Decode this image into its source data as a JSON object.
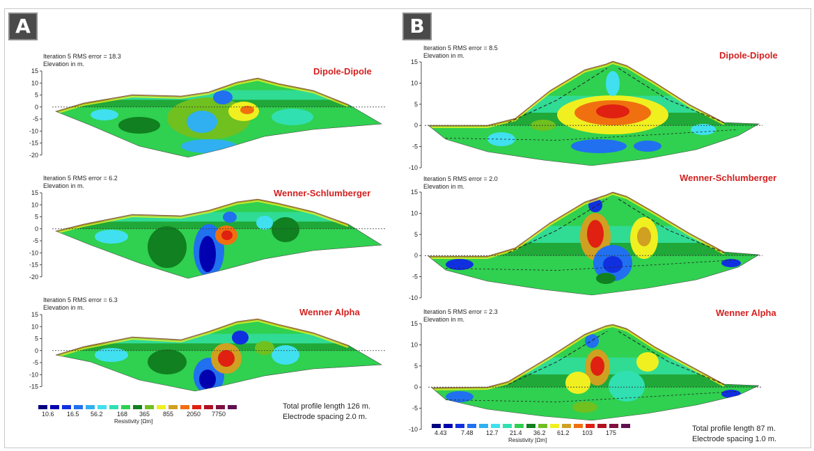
{
  "panels": [
    {
      "badge": "A",
      "models": [
        {
          "iteration": "Iteration 5 RMS error = 18.3",
          "elevation": "Elevation in m.",
          "title": "Dipole-Dipole",
          "yticks": [
            "15",
            "10",
            "5",
            "0",
            "-5",
            "-10",
            "-15",
            "-20"
          ]
        },
        {
          "iteration": "Iteration 5 RMS error = 6.2",
          "elevation": "Elevation in m.",
          "title": "Wenner-Schlumberger",
          "yticks": [
            "15",
            "10",
            "5",
            "0",
            "-5",
            "-10",
            "-15",
            "-20"
          ]
        },
        {
          "iteration": "Iteration 5 RMS error = 6.3",
          "elevation": "Elevation in m.",
          "title": "Wenner Alpha",
          "yticks": [
            "15",
            "10",
            "5",
            "0",
            "-5",
            "-10",
            "-15"
          ]
        }
      ],
      "legend": {
        "labels": [
          "10.6",
          "16.5",
          "56.2",
          "168",
          "365",
          "855",
          "2050",
          "7750"
        ],
        "title": "Resistivity [Ωm]"
      },
      "note": {
        "line1": "Total profile length 126 m.",
        "line2": "Electrode spacing 2.0 m."
      }
    },
    {
      "badge": "B",
      "models": [
        {
          "iteration": "Iteration 5 RMS error = 8.5",
          "elevation": "Elevation in m.",
          "title": "Dipole-Dipole",
          "yticks": [
            "15",
            "10",
            "5",
            "0",
            "-5",
            "-10"
          ]
        },
        {
          "iteration": "Iteration 5 RMS error = 2.0",
          "elevation": "Elevation in m.",
          "title": "Wenner-Schlumberger",
          "yticks": [
            "15",
            "10",
            "5",
            "0",
            "-5",
            "-10"
          ]
        },
        {
          "iteration": "Iteration 5 RMS error = 2.3",
          "elevation": "Elevation in m.",
          "title": "Wenner Alpha",
          "yticks": [
            "15",
            "10",
            "5",
            "0",
            "-5",
            "-10"
          ]
        }
      ],
      "legend": {
        "labels": [
          "4.43",
          "7.48",
          "12.7",
          "21.4",
          "36.2",
          "61.2",
          "103",
          "175"
        ],
        "title": "Resistivity [Ωm]"
      },
      "note": {
        "line1": "Total profile length 87 m.",
        "line2": "Electrode spacing 1.0 m."
      }
    }
  ],
  "colors": {
    "scale": [
      "#000080",
      "#0000b0",
      "#1030e0",
      "#2070f0",
      "#30b0f0",
      "#40e0f0",
      "#30e0b0",
      "#30d050",
      "#108020",
      "#70c020",
      "#f0f020",
      "#d0a020",
      "#f07010",
      "#e02010",
      "#b01020",
      "#801040",
      "#601050"
    ],
    "title": "#d42020"
  }
}
